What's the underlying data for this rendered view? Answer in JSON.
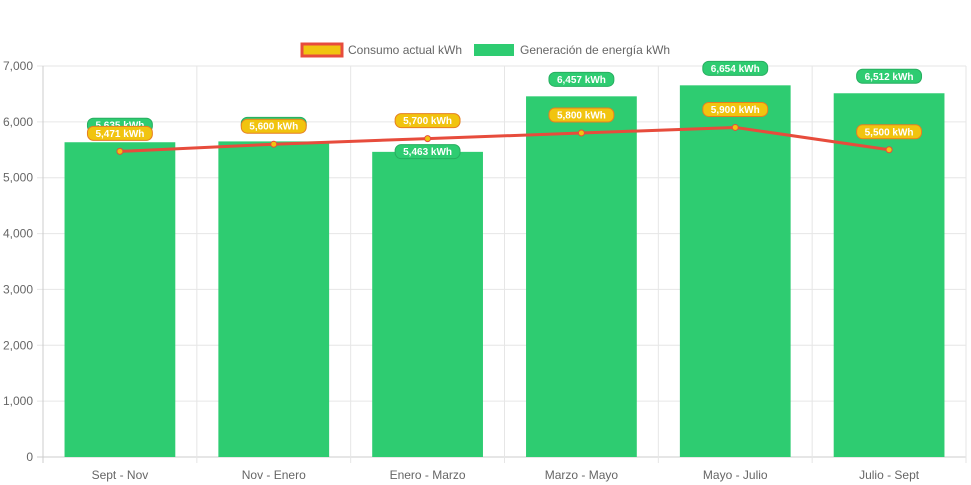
{
  "chart_data": {
    "type": "bar",
    "title": "",
    "xlabel": "",
    "ylabel": "",
    "categories": [
      "Sept - Nov",
      "Nov - Enero",
      "Enero - Marzo",
      "Marzo - Mayo",
      "Mayo - Julio",
      "Julio - Sept"
    ],
    "ylim": [
      0,
      7000
    ],
    "y_ticks": [
      "0",
      "1,000",
      "2,000",
      "3,000",
      "4,000",
      "5,000",
      "6,000",
      "7,000"
    ],
    "grid": true,
    "legend_position": "top",
    "series": [
      {
        "name": "Consumo actual kWh",
        "type": "line",
        "color": "#e74c3c",
        "marker_color": "#f1c40f",
        "values": [
          5471,
          5600,
          5700,
          5800,
          5900,
          5500
        ],
        "labels": [
          "5,471 kWh",
          "5,600 kWh",
          "5,700 kWh",
          "5,800 kWh",
          "5,900 kWh",
          "5,500 kWh"
        ]
      },
      {
        "name": "Generación de energía kWh",
        "type": "bar",
        "color": "#2ecc71",
        "values": [
          5635,
          5650,
          5463,
          6457,
          6654,
          6512
        ],
        "labels": [
          "5,635 kWh",
          "5,650 kWh",
          "5,463 kWh",
          "6,457 kWh",
          "6,654 kWh",
          "6,512 kWh"
        ]
      }
    ]
  }
}
